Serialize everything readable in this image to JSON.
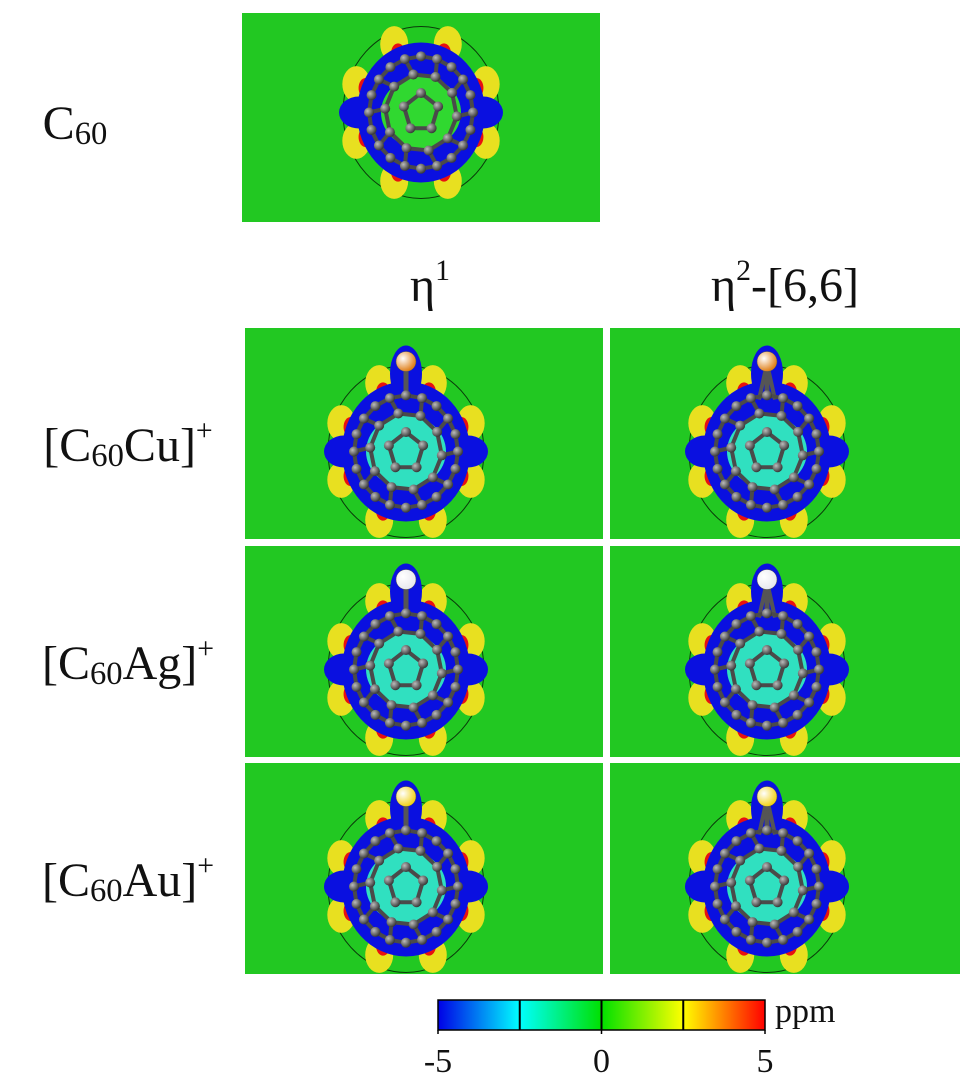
{
  "figure": {
    "top_label": [
      {
        "text": "C"
      },
      {
        "text": "60",
        "sub": true
      }
    ],
    "columns": [
      [
        {
          "text": "η"
        },
        {
          "text": "1",
          "sup": true
        }
      ],
      [
        {
          "text": "η"
        },
        {
          "text": "2",
          "sup": true
        },
        {
          "text": "-[6,6]"
        }
      ]
    ],
    "rows": [
      {
        "label": [
          {
            "text": "[C"
          },
          {
            "text": "60",
            "sub": true
          },
          {
            "text": "Cu]"
          },
          {
            "text": "+",
            "sup": true
          }
        ],
        "metal_color": "#e0801a"
      },
      {
        "label": [
          {
            "text": "[C"
          },
          {
            "text": "60",
            "sub": true
          },
          {
            "text": "Ag]"
          },
          {
            "text": "+",
            "sup": true
          }
        ],
        "metal_color": "#e8e8ee"
      },
      {
        "label": [
          {
            "text": "[C"
          },
          {
            "text": "60",
            "sub": true
          },
          {
            "text": "Au]"
          },
          {
            "text": "+",
            "sup": true
          }
        ],
        "metal_color": "#f2d21a"
      }
    ],
    "colorbar": {
      "lim": [
        -5,
        5
      ],
      "ticks": [
        -5,
        0,
        5
      ],
      "contour_levels": [
        -2.5,
        0,
        2.5
      ],
      "unit": "ppm",
      "colors": [
        "#0000e6",
        "#00ffff",
        "#00e000",
        "#ffff00",
        "#ff0000"
      ]
    }
  }
}
